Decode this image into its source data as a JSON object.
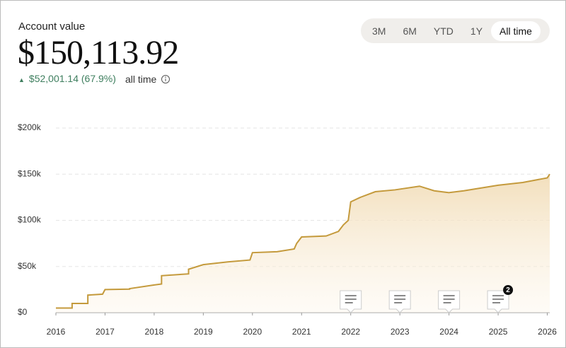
{
  "header": {
    "title": "Account value",
    "value": "$150,113.92",
    "change": "$52,001.14 (67.9%)",
    "period": "all time"
  },
  "range_buttons": [
    "3M",
    "6M",
    "YTD",
    "1Y",
    "All time"
  ],
  "selected_range": 4,
  "chart_data": {
    "type": "area",
    "x": [
      2016,
      2016.33,
      2016.33,
      2016.65,
      2016.65,
      2016.95,
      2017.0,
      2017.5,
      2017.5,
      2018.0,
      2018.15,
      2018.15,
      2018.7,
      2018.7,
      2019.0,
      2019.5,
      2019.95,
      2020.0,
      2020.5,
      2020.85,
      2020.9,
      2021.0,
      2021.5,
      2021.75,
      2021.85,
      2021.95,
      2022.0,
      2022.2,
      2022.5,
      2022.9,
      2023.4,
      2023.7,
      2024.0,
      2024.3,
      2025.0,
      2025.5,
      2026.0,
      2026.05
    ],
    "values": [
      5000,
      5000,
      10000,
      10000,
      19000,
      20000,
      25000,
      25500,
      26000,
      30000,
      31000,
      40000,
      42000,
      47000,
      52000,
      55000,
      57000,
      65000,
      66000,
      69000,
      75000,
      82000,
      83000,
      88000,
      95000,
      100000,
      120000,
      125000,
      131000,
      133000,
      137000,
      132000,
      130000,
      132000,
      138000,
      141000,
      146000,
      150000
    ],
    "color": "#c49a3c",
    "xlim": [
      2016,
      2026.05
    ],
    "xticks": [
      2016,
      2017,
      2018,
      2019,
      2020,
      2021,
      2022,
      2023,
      2024,
      2025,
      2026
    ],
    "ylim": [
      0,
      200000
    ],
    "yticks": [
      {
        "value": 0,
        "label": "$0"
      },
      {
        "value": 50000,
        "label": "$50k"
      },
      {
        "value": 100000,
        "label": "$100k"
      },
      {
        "value": 150000,
        "label": "$150k"
      },
      {
        "value": 200000,
        "label": "$200k"
      }
    ],
    "grid": true,
    "events": [
      2022,
      2023,
      2024,
      2025
    ],
    "event_badges": [
      null,
      null,
      null,
      "2"
    ]
  }
}
